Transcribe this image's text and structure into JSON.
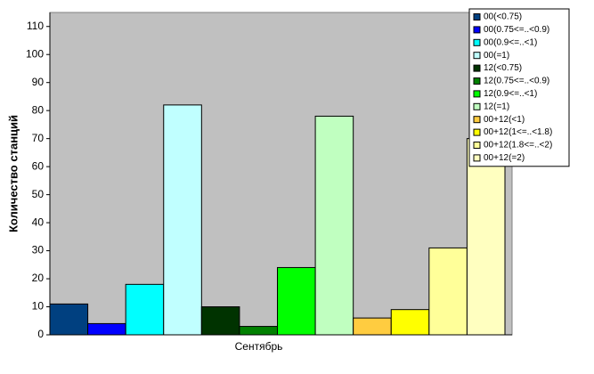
{
  "chart_data": {
    "type": "bar",
    "y_label": "Количество станций",
    "categories": [
      "Сентябрь"
    ],
    "ylim": [
      0,
      115
    ],
    "yticks": [
      0,
      10,
      20,
      30,
      40,
      50,
      60,
      70,
      80,
      90,
      100,
      110
    ],
    "grid": false,
    "legend": "top-right",
    "series": [
      {
        "name": "00(<0.75)",
        "color": "#004080",
        "values": [
          11
        ]
      },
      {
        "name": "00(0.75<=..<0.9)",
        "color": "#0000ff",
        "values": [
          4
        ]
      },
      {
        "name": "00(0.9<=..<1)",
        "color": "#00ffff",
        "values": [
          18
        ]
      },
      {
        "name": "00(=1)",
        "color": "#c0ffff",
        "values": [
          82
        ]
      },
      {
        "name": "12(<0.75)",
        "color": "#003300",
        "values": [
          10
        ]
      },
      {
        "name": "12(0.75<=..<0.9)",
        "color": "#008000",
        "values": [
          3
        ]
      },
      {
        "name": "12(0.9<=..<1)",
        "color": "#00ff00",
        "values": [
          24
        ]
      },
      {
        "name": "12(=1)",
        "color": "#c0ffc0",
        "values": [
          78
        ]
      },
      {
        "name": "00+12(<1)",
        "color": "#ffcc40",
        "values": [
          6
        ]
      },
      {
        "name": "00+12(1<=..<1.8)",
        "color": "#ffff00",
        "values": [
          9
        ]
      },
      {
        "name": "00+12(1.8<=..<2)",
        "color": "#ffff99",
        "values": [
          31
        ]
      },
      {
        "name": "00+12(=2)",
        "color": "#ffffc0",
        "values": [
          70
        ]
      }
    ]
  }
}
